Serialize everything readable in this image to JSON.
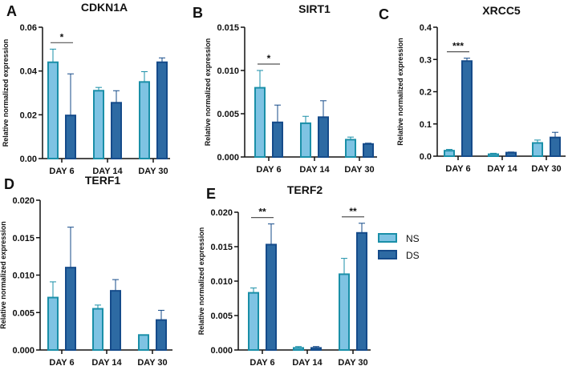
{
  "legend": [
    {
      "name": "NS",
      "color": "#7ec3e3",
      "stroke": "#1a8fa8"
    },
    {
      "name": "DS",
      "color": "#2d6aa3",
      "stroke": "#154b8a"
    }
  ],
  "chart_data": [
    {
      "type": "bar",
      "panel": "A",
      "title": "CDKN1A",
      "ylabel": "Relative normalized expression",
      "categories": [
        "DAY 6",
        "DAY 14",
        "DAY 30"
      ],
      "ylim": [
        0,
        0.06
      ],
      "yticks": [
        "0.00",
        "0.02",
        "0.04",
        "0.06"
      ],
      "series": [
        {
          "name": "NS",
          "values": [
            0.044,
            0.031,
            0.035
          ],
          "errors": [
            0.006,
            0.0015,
            0.0047
          ]
        },
        {
          "name": "DS",
          "values": [
            0.0197,
            0.0255,
            0.044
          ],
          "errors": [
            0.019,
            0.0055,
            0.002
          ]
        }
      ],
      "annotations": [
        {
          "category": "DAY 6",
          "text": "*"
        }
      ]
    },
    {
      "type": "bar",
      "panel": "B",
      "title": "SIRT1",
      "ylabel": "Relative normalized expression",
      "categories": [
        "DAY 6",
        "DAY 14",
        "DAY 30"
      ],
      "ylim": [
        0,
        0.015
      ],
      "yticks": [
        "0.000",
        "0.005",
        "0.010",
        "0.015"
      ],
      "series": [
        {
          "name": "NS",
          "values": [
            0.008,
            0.0039,
            0.002
          ],
          "errors": [
            0.002,
            0.0008,
            0.0003
          ]
        },
        {
          "name": "DS",
          "values": [
            0.004,
            0.0046,
            0.0015
          ],
          "errors": [
            0.002,
            0.0019,
            0.0001
          ]
        }
      ],
      "annotations": [
        {
          "category": "DAY 6",
          "text": "*"
        }
      ]
    },
    {
      "type": "bar",
      "panel": "C",
      "title": "XRCC5",
      "ylabel": "Relative normalized expression",
      "categories": [
        "DAY 6",
        "DAY 14",
        "DAY 30"
      ],
      "ylim": [
        0,
        0.4
      ],
      "yticks": [
        "0.0",
        "0.1",
        "0.2",
        "0.3",
        "0.4"
      ],
      "series": [
        {
          "name": "NS",
          "values": [
            0.017,
            0.006,
            0.041
          ],
          "errors": [
            0.004,
            0.003,
            0.009
          ]
        },
        {
          "name": "DS",
          "values": [
            0.295,
            0.011,
            0.058
          ],
          "errors": [
            0.009,
            0.002,
            0.016
          ]
        }
      ],
      "annotations": [
        {
          "category": "DAY 6",
          "text": "***"
        }
      ]
    },
    {
      "type": "bar",
      "panel": "D",
      "title": "TERF1",
      "ylabel": "Relative normalized expression",
      "categories": [
        "DAY 6",
        "DAY 14",
        "DAY 30"
      ],
      "ylim": [
        0,
        0.02
      ],
      "yticks": [
        "0.000",
        "0.005",
        "0.010",
        "0.015",
        "0.020"
      ],
      "series": [
        {
          "name": "NS",
          "values": [
            0.007,
            0.0055,
            0.002
          ],
          "errors": [
            0.0021,
            0.0005,
            0
          ]
        },
        {
          "name": "DS",
          "values": [
            0.011,
            0.0079,
            0.004
          ],
          "errors": [
            0.0054,
            0.0015,
            0.0013
          ]
        }
      ],
      "annotations": []
    },
    {
      "type": "bar",
      "panel": "E",
      "title": "TERF2",
      "ylabel": "Relative normalized expression",
      "categories": [
        "DAY 6",
        "DAY 14",
        "DAY 30"
      ],
      "ylim": [
        0,
        0.02
      ],
      "yticks": [
        "0.000",
        "0.005",
        "0.010",
        "0.015",
        "0.020"
      ],
      "series": [
        {
          "name": "NS",
          "values": [
            0.0083,
            0.0003,
            0.011
          ],
          "errors": [
            0.0007,
            0.0002,
            0.0023
          ]
        },
        {
          "name": "DS",
          "values": [
            0.0153,
            0.0003,
            0.017
          ],
          "errors": [
            0.003,
            0.0002,
            0.0014
          ]
        }
      ],
      "annotations": [
        {
          "category": "DAY 6",
          "text": "**"
        },
        {
          "category": "DAY 30",
          "text": "**"
        }
      ]
    }
  ]
}
